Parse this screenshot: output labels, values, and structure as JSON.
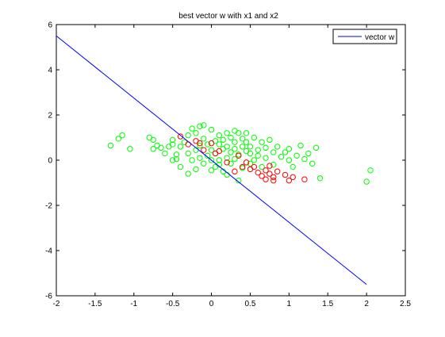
{
  "chart_data": {
    "type": "scatter",
    "title": "best vector w with x1 and x2",
    "xlabel": "",
    "ylabel": "",
    "xlim": [
      -2,
      2.5
    ],
    "ylim": [
      -6,
      6
    ],
    "xticks": [
      -2,
      -1.5,
      -1,
      -0.5,
      0,
      0.5,
      1,
      1.5,
      2,
      2.5
    ],
    "yticks": [
      -6,
      -4,
      -2,
      0,
      2,
      4,
      6
    ],
    "grid": false,
    "legend_position": "top-right",
    "line_series": {
      "name": "vector w",
      "color": "#0000ff",
      "points": [
        [
          -2,
          5.5
        ],
        [
          2,
          -5.5
        ]
      ]
    },
    "scatter_series": [
      {
        "color": "#00ff00",
        "marker": "open-circle",
        "points": [
          [
            -1.3,
            0.65
          ],
          [
            -1.2,
            0.95
          ],
          [
            -1.15,
            1.1
          ],
          [
            -1.05,
            0.5
          ],
          [
            -0.8,
            1.0
          ],
          [
            -0.75,
            0.9
          ],
          [
            -0.75,
            0.5
          ],
          [
            -0.7,
            0.65
          ],
          [
            -0.65,
            0.55
          ],
          [
            -0.6,
            0.3
          ],
          [
            -0.55,
            0.6
          ],
          [
            -0.5,
            0.9
          ],
          [
            -0.5,
            0.0
          ],
          [
            -0.5,
            0.7
          ],
          [
            -0.45,
            0.25
          ],
          [
            -0.45,
            0.05
          ],
          [
            -0.4,
            0.6
          ],
          [
            -0.4,
            -0.3
          ],
          [
            -0.35,
            0.8
          ],
          [
            -0.3,
            0.3
          ],
          [
            -0.3,
            1.1
          ],
          [
            -0.3,
            -0.6
          ],
          [
            -0.25,
            1.4
          ],
          [
            -0.25,
            0.0
          ],
          [
            -0.2,
            0.45
          ],
          [
            -0.2,
            1.2
          ],
          [
            -0.2,
            -0.4
          ],
          [
            -0.15,
            1.5
          ],
          [
            -0.15,
            0.65
          ],
          [
            -0.15,
            0.1
          ],
          [
            -0.1,
            1.55
          ],
          [
            -0.1,
            0.95
          ],
          [
            -0.1,
            -0.15
          ],
          [
            -0.05,
            0.7
          ],
          [
            -0.05,
            0.2
          ],
          [
            0.0,
            1.35
          ],
          [
            0.0,
            0.45
          ],
          [
            0.0,
            0.0
          ],
          [
            0.0,
            -0.45
          ],
          [
            0.05,
            0.85
          ],
          [
            0.05,
            0.3
          ],
          [
            0.05,
            -0.3
          ],
          [
            0.1,
            1.1
          ],
          [
            0.1,
            0.7
          ],
          [
            0.1,
            0.0
          ],
          [
            0.1,
            -0.2
          ],
          [
            0.15,
            0.9
          ],
          [
            0.15,
            0.5
          ],
          [
            0.15,
            -0.5
          ],
          [
            0.2,
            1.2
          ],
          [
            0.2,
            0.6
          ],
          [
            0.2,
            0.1
          ],
          [
            0.2,
            -0.65
          ],
          [
            0.25,
            1.0
          ],
          [
            0.25,
            0.35
          ],
          [
            0.25,
            -0.15
          ],
          [
            0.3,
            1.3
          ],
          [
            0.3,
            0.8
          ],
          [
            0.3,
            0.5
          ],
          [
            0.3,
            0.05
          ],
          [
            0.35,
            1.2
          ],
          [
            0.35,
            0.25
          ],
          [
            0.35,
            -0.9
          ],
          [
            0.4,
            0.95
          ],
          [
            0.4,
            0.6
          ],
          [
            0.4,
            -0.35
          ],
          [
            0.45,
            1.2
          ],
          [
            0.45,
            0.8
          ],
          [
            0.45,
            0.4
          ],
          [
            0.5,
            0.3
          ],
          [
            0.5,
            -0.15
          ],
          [
            0.5,
            0.6
          ],
          [
            0.55,
            1.0
          ],
          [
            0.55,
            0.0
          ],
          [
            0.6,
            0.45
          ],
          [
            0.6,
            0.2
          ],
          [
            0.65,
            0.8
          ],
          [
            0.65,
            -0.3
          ],
          [
            0.7,
            0.55
          ],
          [
            0.7,
            0.1
          ],
          [
            0.75,
            0.9
          ],
          [
            0.8,
            0.35
          ],
          [
            0.8,
            -0.2
          ],
          [
            0.85,
            0.6
          ],
          [
            0.9,
            0.15
          ],
          [
            0.95,
            0.35
          ],
          [
            1.0,
            0.0
          ],
          [
            1.0,
            0.5
          ],
          [
            1.05,
            -0.3
          ],
          [
            1.1,
            0.2
          ],
          [
            1.15,
            0.65
          ],
          [
            1.2,
            0.05
          ],
          [
            1.25,
            0.3
          ],
          [
            1.3,
            -0.15
          ],
          [
            1.35,
            0.55
          ],
          [
            1.4,
            -0.8
          ],
          [
            2.05,
            -0.45
          ],
          [
            2.0,
            -0.95
          ]
        ]
      },
      {
        "color": "#ff0000",
        "marker": "open-circle",
        "points": [
          [
            -0.4,
            1.05
          ],
          [
            -0.3,
            0.7
          ],
          [
            -0.2,
            0.85
          ],
          [
            -0.15,
            0.75
          ],
          [
            -0.1,
            0.45
          ],
          [
            0.0,
            0.75
          ],
          [
            0.05,
            0.3
          ],
          [
            0.1,
            0.4
          ],
          [
            0.2,
            -0.1
          ],
          [
            0.3,
            -0.5
          ],
          [
            0.35,
            0.2
          ],
          [
            0.4,
            -0.3
          ],
          [
            0.45,
            -0.1
          ],
          [
            0.5,
            -0.4
          ],
          [
            0.55,
            -0.3
          ],
          [
            0.6,
            -0.55
          ],
          [
            0.65,
            -0.7
          ],
          [
            0.7,
            -0.85
          ],
          [
            0.7,
            -0.45
          ],
          [
            0.75,
            -0.6
          ],
          [
            0.75,
            -0.25
          ],
          [
            0.8,
            -0.75
          ],
          [
            0.8,
            -0.9
          ],
          [
            0.85,
            -0.5
          ],
          [
            0.95,
            -0.65
          ],
          [
            1.0,
            -0.9
          ],
          [
            1.05,
            -0.75
          ],
          [
            1.2,
            -0.85
          ]
        ]
      }
    ]
  }
}
